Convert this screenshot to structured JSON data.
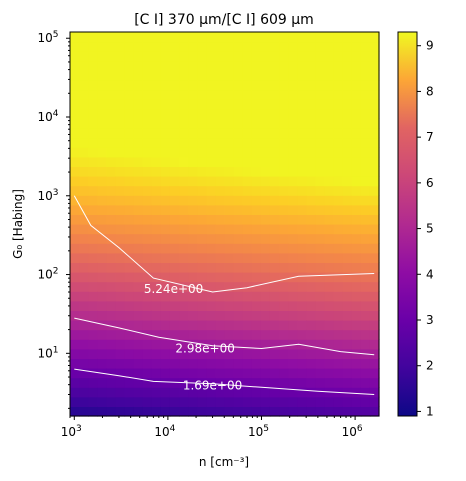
{
  "chart_data": {
    "type": "heatmap",
    "title": "[C I] 370 μm/[C I] 609 μm",
    "xlabel": "n [cm⁻³]",
    "ylabel": "G₀ [Habing]",
    "x_scale": "log",
    "y_scale": "log",
    "xlim": [
      900,
      1800000
    ],
    "ylim": [
      1.6,
      120000
    ],
    "x_ticks": [
      {
        "value": 1000,
        "base": "10",
        "exp": "3"
      },
      {
        "value": 10000,
        "base": "10",
        "exp": "4"
      },
      {
        "value": 100000,
        "base": "10",
        "exp": "5"
      },
      {
        "value": 1000000,
        "base": "10",
        "exp": "6"
      }
    ],
    "y_ticks": [
      {
        "value": 10,
        "base": "10",
        "exp": "1"
      },
      {
        "value": 100,
        "base": "10",
        "exp": "2"
      },
      {
        "value": 1000,
        "base": "10",
        "exp": "3"
      },
      {
        "value": 10000,
        "base": "10",
        "exp": "4"
      },
      {
        "value": 100000,
        "base": "10",
        "exp": "5"
      }
    ],
    "colormap": "plasma",
    "colorbar": {
      "range": [
        0.9,
        9.3
      ],
      "ticks": [
        "1",
        "2",
        "3",
        "4",
        "5",
        "6",
        "7",
        "8",
        "9"
      ]
    },
    "contours": [
      {
        "label": "5.24e+00",
        "label_at": [
          11500,
          66
        ],
        "points": [
          [
            1000,
            1000
          ],
          [
            1500,
            420
          ],
          [
            3000,
            220
          ],
          [
            7000,
            90
          ],
          [
            30000,
            60
          ],
          [
            70000,
            68
          ],
          [
            250000,
            95
          ],
          [
            1600000,
            103
          ]
        ]
      },
      {
        "label": "2.98e+00",
        "label_at": [
          25000,
          11.5
        ],
        "points": [
          [
            1000,
            28
          ],
          [
            3000,
            21
          ],
          [
            8000,
            16
          ],
          [
            30000,
            12.5
          ],
          [
            100000,
            11.5
          ],
          [
            250000,
            13
          ],
          [
            700000,
            10.5
          ],
          [
            1600000,
            9.6
          ]
        ]
      },
      {
        "label": "1.69e+00",
        "label_at": [
          30000,
          3.9
        ],
        "points": [
          [
            1000,
            6.3
          ],
          [
            3000,
            5.2
          ],
          [
            7000,
            4.4
          ],
          [
            30000,
            4.1
          ],
          [
            100000,
            3.7
          ],
          [
            400000,
            3.3
          ],
          [
            1600000,
            3.0
          ]
        ]
      }
    ]
  }
}
